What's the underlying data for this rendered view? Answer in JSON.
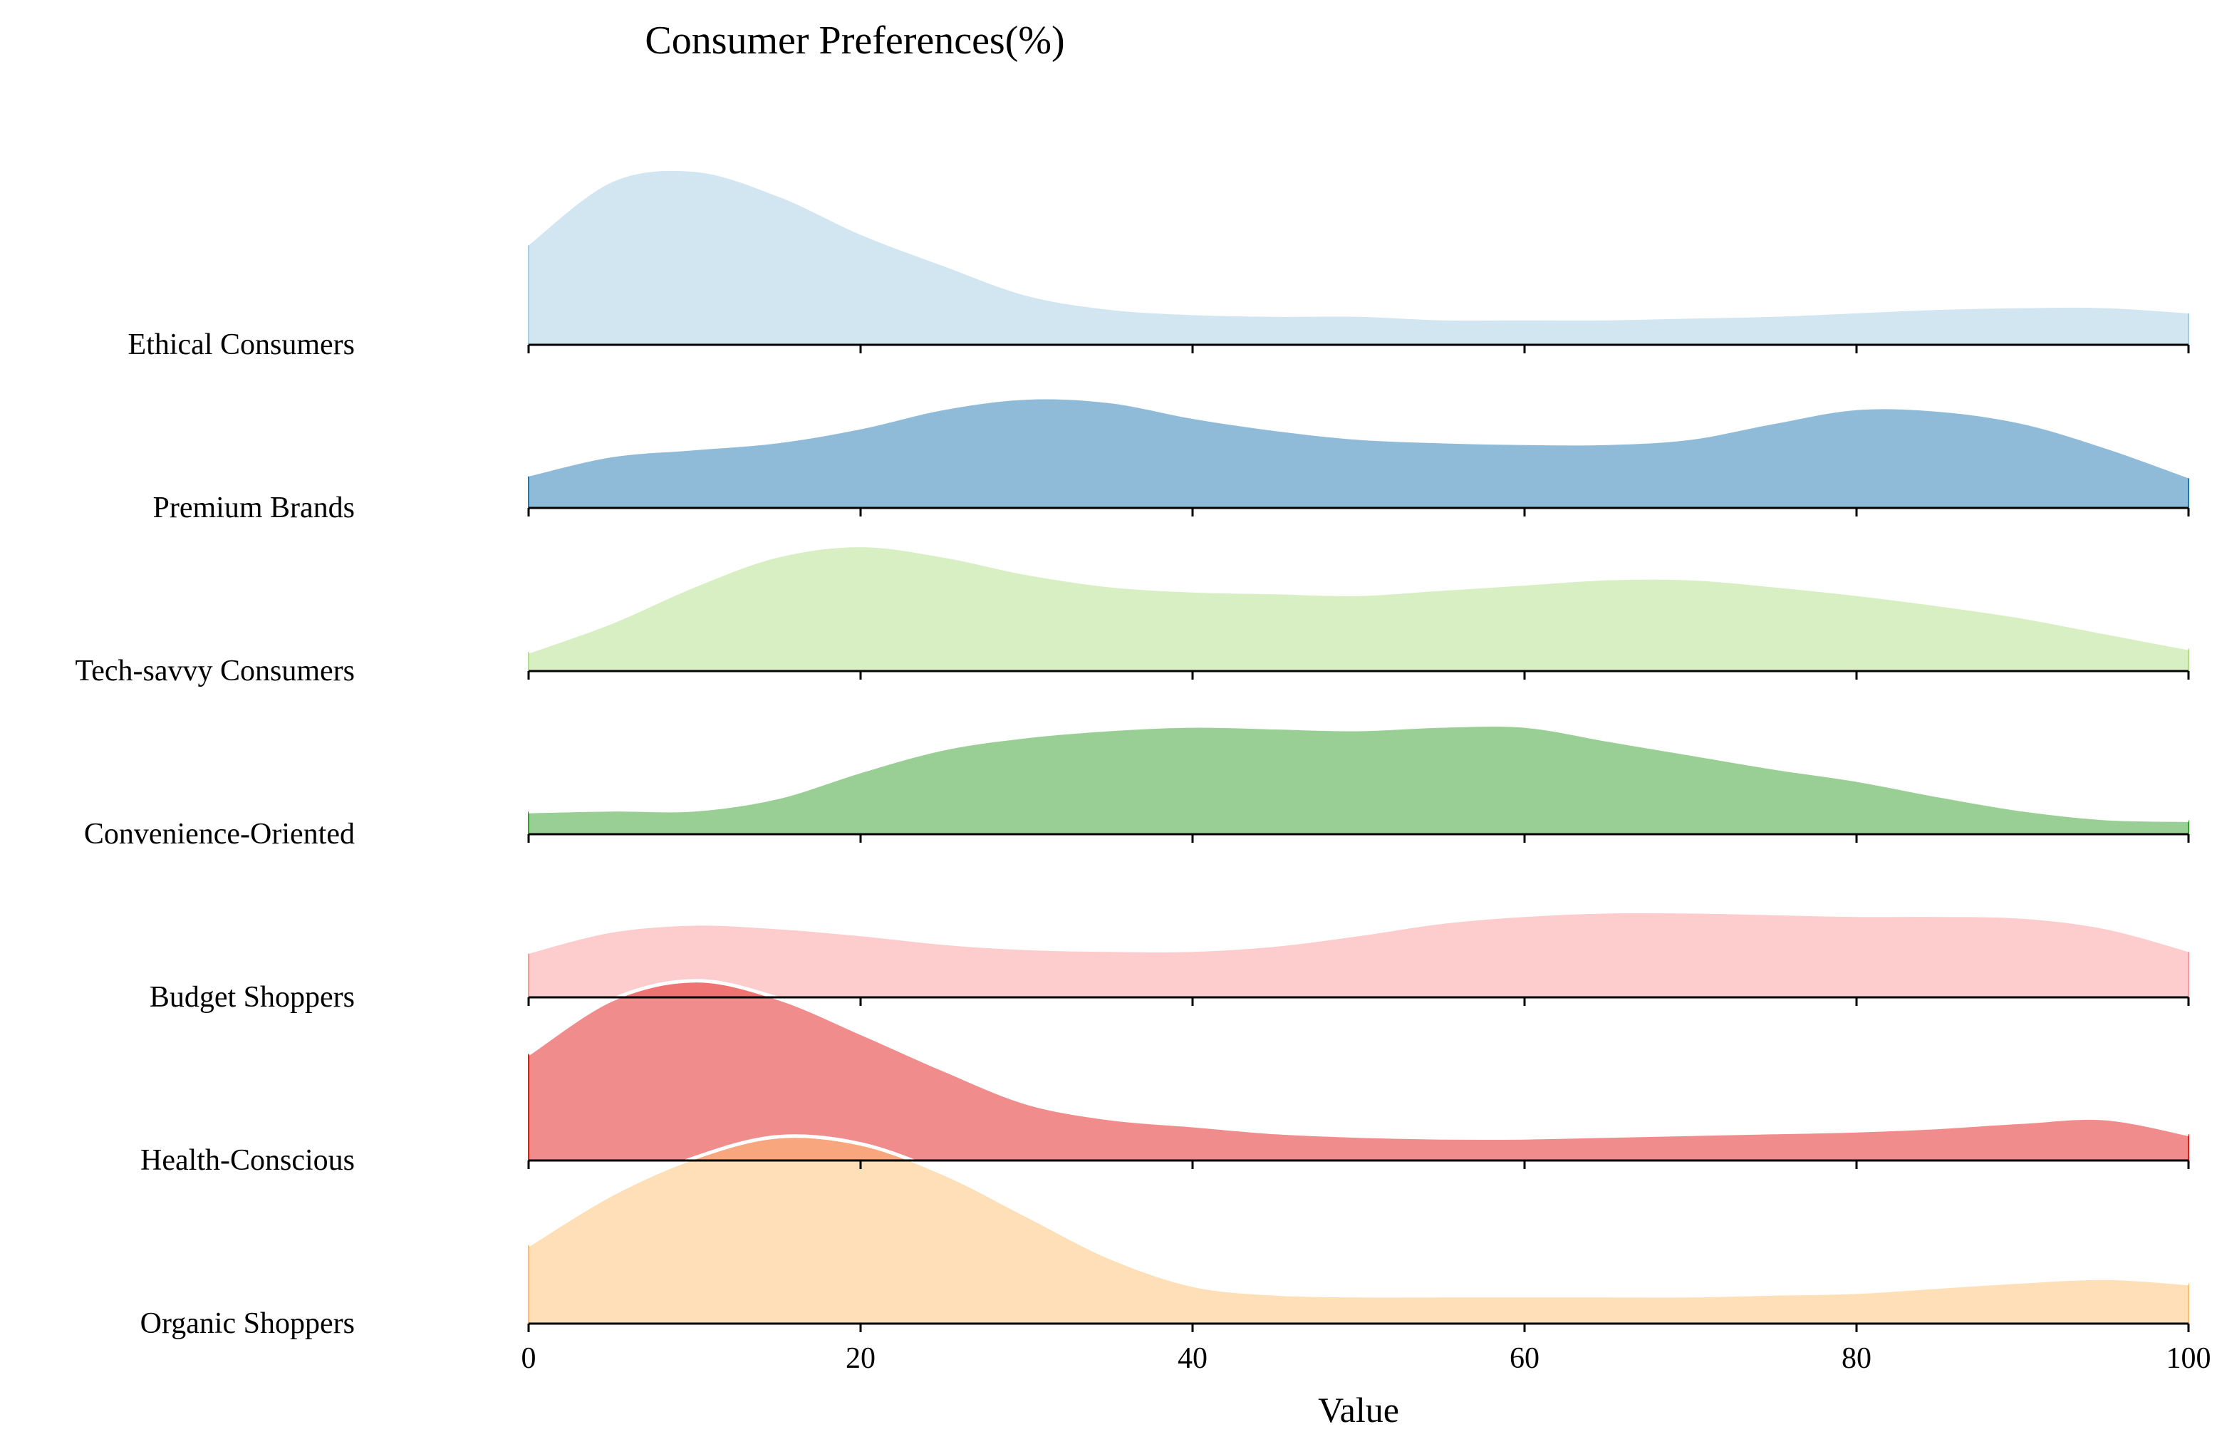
{
  "chart_data": {
    "type": "ridgeline",
    "title": "Consumer Preferences(%)",
    "xlabel": "Value",
    "xlim": [
      0,
      100
    ],
    "xticks": [
      0,
      20,
      40,
      60,
      80,
      100
    ],
    "grid": false,
    "legend": "none",
    "x": [
      0,
      5,
      10,
      15,
      20,
      25,
      30,
      35,
      40,
      45,
      50,
      55,
      60,
      65,
      70,
      75,
      80,
      85,
      90,
      95,
      100
    ],
    "series": [
      {
        "name": "Ethical Consumers",
        "color": "#a6cee3",
        "fill_opacity": 0.5,
        "white_outline": false,
        "values": [
          0.57,
          0.93,
          0.99,
          0.85,
          0.63,
          0.45,
          0.28,
          0.2,
          0.17,
          0.16,
          0.16,
          0.14,
          0.14,
          0.14,
          0.15,
          0.16,
          0.18,
          0.2,
          0.21,
          0.21,
          0.18
        ]
      },
      {
        "name": "Premium Brands",
        "color": "#1f78b4",
        "fill_opacity": 0.5,
        "white_outline": false,
        "values": [
          0.18,
          0.29,
          0.33,
          0.37,
          0.45,
          0.56,
          0.62,
          0.6,
          0.51,
          0.44,
          0.39,
          0.37,
          0.36,
          0.36,
          0.39,
          0.48,
          0.56,
          0.55,
          0.48,
          0.34,
          0.17
        ]
      },
      {
        "name": "Tech-savvy Consumers",
        "color": "#b2df8a",
        "fill_opacity": 0.5,
        "white_outline": true,
        "values": [
          0.11,
          0.28,
          0.49,
          0.66,
          0.72,
          0.66,
          0.56,
          0.49,
          0.46,
          0.45,
          0.44,
          0.47,
          0.5,
          0.53,
          0.53,
          0.49,
          0.44,
          0.38,
          0.31,
          0.22,
          0.13
        ]
      },
      {
        "name": "Convenience-Oriented",
        "color": "#33a02c",
        "fill_opacity": 0.5,
        "white_outline": true,
        "values": [
          0.13,
          0.14,
          0.14,
          0.21,
          0.36,
          0.49,
          0.56,
          0.6,
          0.62,
          0.61,
          0.6,
          0.62,
          0.62,
          0.54,
          0.46,
          0.38,
          0.31,
          0.22,
          0.14,
          0.09,
          0.08
        ]
      },
      {
        "name": "Budget Shoppers",
        "color": "#fb9a99",
        "fill_opacity": 0.5,
        "white_outline": false,
        "values": [
          0.25,
          0.37,
          0.41,
          0.39,
          0.35,
          0.3,
          0.27,
          0.26,
          0.26,
          0.29,
          0.35,
          0.42,
          0.46,
          0.48,
          0.48,
          0.47,
          0.46,
          0.46,
          0.45,
          0.39,
          0.26
        ]
      },
      {
        "name": "Health-Conscious",
        "color": "#e31a1c",
        "fill_opacity": 0.5,
        "white_outline": true,
        "values": [
          0.61,
          0.92,
          1.03,
          0.93,
          0.73,
          0.52,
          0.33,
          0.24,
          0.2,
          0.16,
          0.14,
          0.13,
          0.13,
          0.14,
          0.15,
          0.16,
          0.17,
          0.19,
          0.22,
          0.24,
          0.15
        ]
      },
      {
        "name": "Organic Shoppers",
        "color": "#fdbf6f",
        "fill_opacity": 0.5,
        "white_outline": true,
        "values": [
          0.45,
          0.74,
          0.95,
          1.07,
          1.03,
          0.86,
          0.62,
          0.38,
          0.22,
          0.17,
          0.16,
          0.16,
          0.16,
          0.16,
          0.16,
          0.17,
          0.18,
          0.21,
          0.24,
          0.26,
          0.23
        ]
      }
    ]
  }
}
